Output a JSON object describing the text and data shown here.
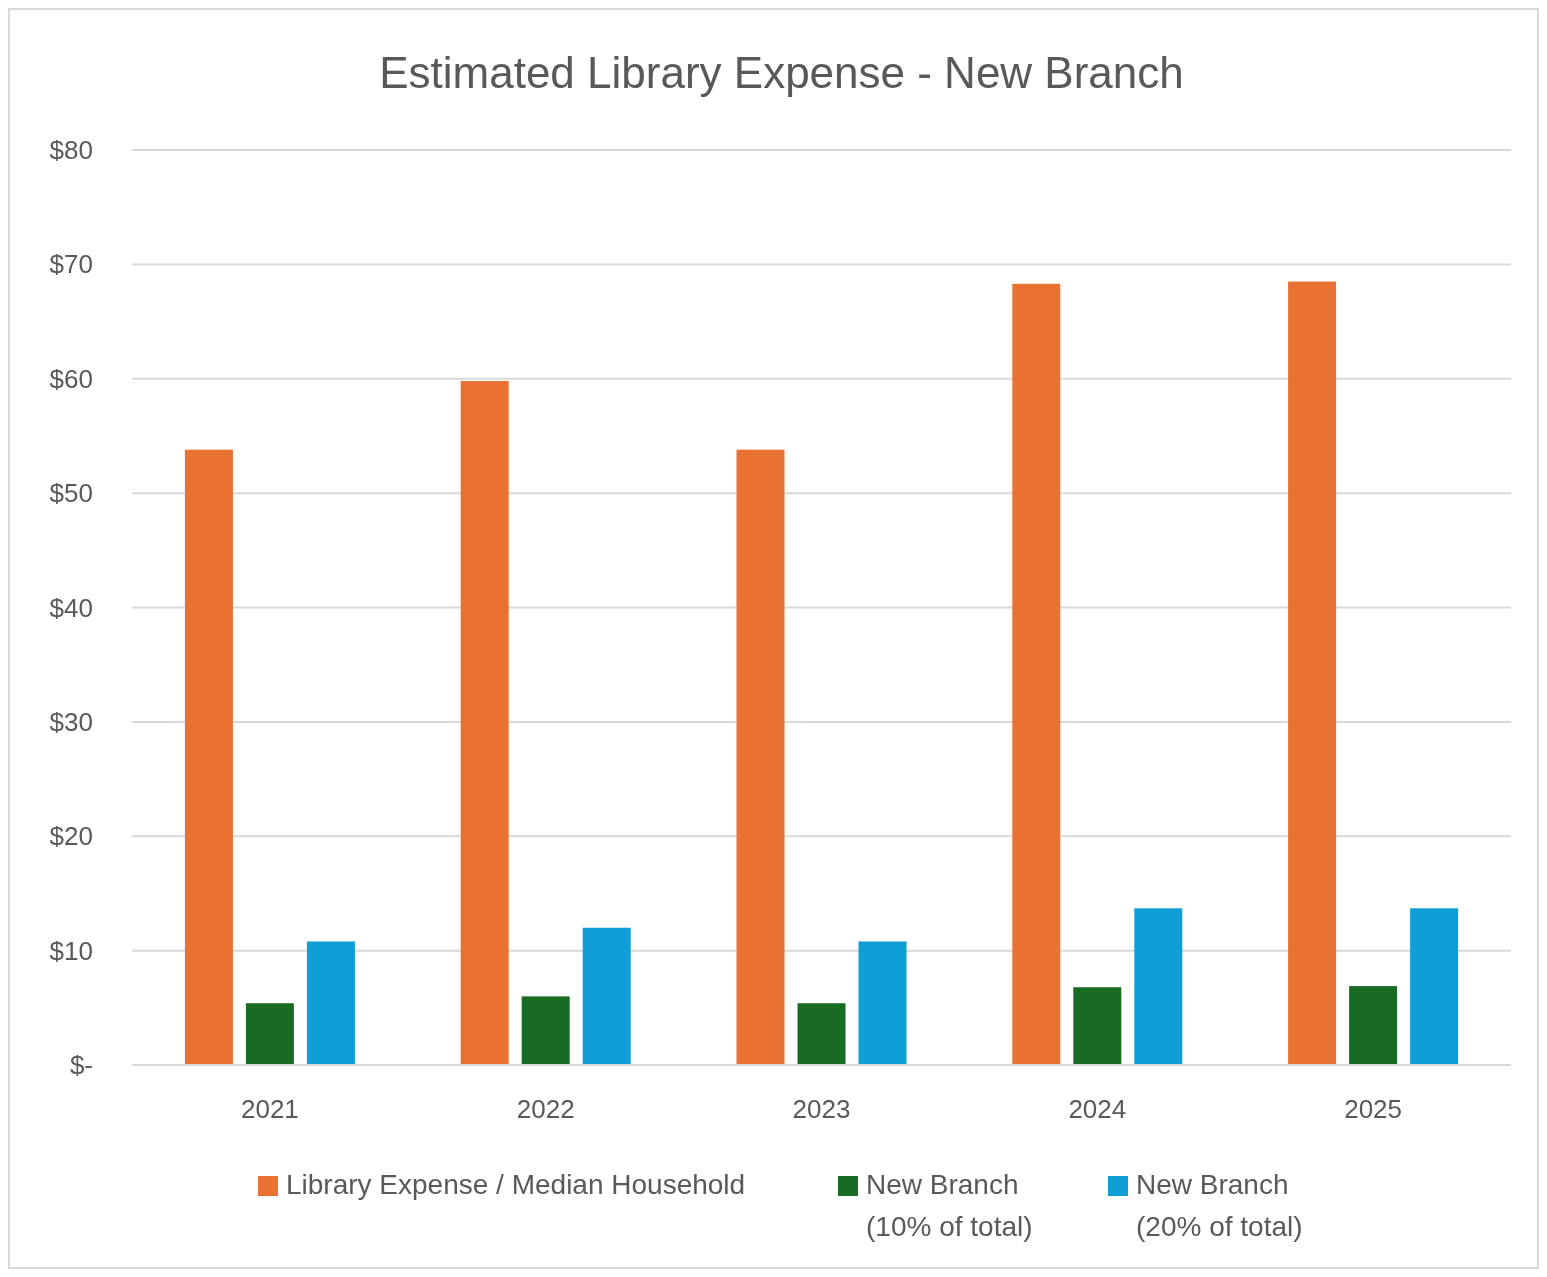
{
  "chart_data": {
    "type": "bar",
    "title": "Estimated Library Expense - New Branch",
    "categories": [
      "2021",
      "2022",
      "2023",
      "2024",
      "2025"
    ],
    "series": [
      {
        "name": "Library Expense / Median Household",
        "color": "#e97132",
        "values": [
          53.8,
          59.8,
          53.8,
          68.3,
          68.5
        ]
      },
      {
        "name": "New Branch\n(10% of total)",
        "color": "#196b24",
        "values": [
          5.4,
          6.0,
          5.4,
          6.8,
          6.9
        ]
      },
      {
        "name": "New Branch\n(20% of total)",
        "color": "#0f9ed5",
        "values": [
          10.8,
          12.0,
          10.8,
          13.7,
          13.7
        ]
      }
    ],
    "ylim": [
      0,
      80
    ],
    "yticks": [
      {
        "value": 0,
        "label": "$-"
      },
      {
        "value": 10,
        "label": "$10"
      },
      {
        "value": 20,
        "label": "$20"
      },
      {
        "value": 30,
        "label": "$30"
      },
      {
        "value": 40,
        "label": "$40"
      },
      {
        "value": 50,
        "label": "$50"
      },
      {
        "value": 60,
        "label": "$60"
      },
      {
        "value": 70,
        "label": "$70"
      },
      {
        "value": 80,
        "label": "$80"
      }
    ],
    "grid": "y",
    "legend": "bottom"
  }
}
